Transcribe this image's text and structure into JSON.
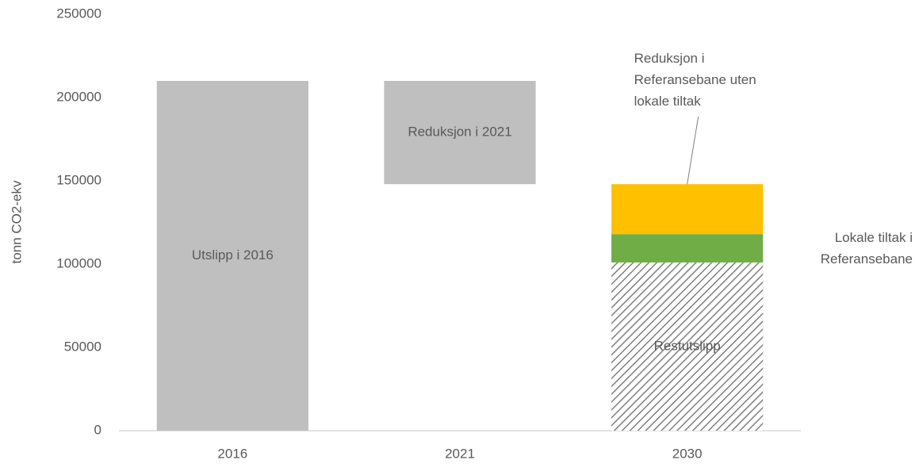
{
  "chart_data": {
    "type": "waterfall",
    "ylabel": "tonn CO2-ekv",
    "categories": [
      "2016",
      "2021",
      "2030"
    ],
    "measure": [
      "absolute",
      "relative",
      "absolute"
    ],
    "ylim": [
      0,
      250000
    ],
    "yticks": [
      0,
      50000,
      100000,
      150000,
      200000,
      250000
    ],
    "grid": false,
    "series": [
      {
        "name": "Utslipp i 2016",
        "color": "#bfbfbf",
        "values": [
          210000,
          null,
          null
        ]
      },
      {
        "name": "Reduksjon i 2021",
        "color": "#bfbfbf",
        "values": [
          null,
          -62000,
          null
        ]
      },
      {
        "name": "Restutslipp",
        "color": "#7f7f7f",
        "pattern": "hatch",
        "values": [
          null,
          null,
          101000
        ]
      },
      {
        "name": "Lokale tiltak i Referansebane",
        "color": "#70ad47",
        "values": [
          null,
          null,
          17000
        ]
      },
      {
        "name": "Reduksjon i Referansebane uten lokale tiltak",
        "color": "#ffc000",
        "values": [
          null,
          null,
          30000
        ]
      }
    ]
  }
}
